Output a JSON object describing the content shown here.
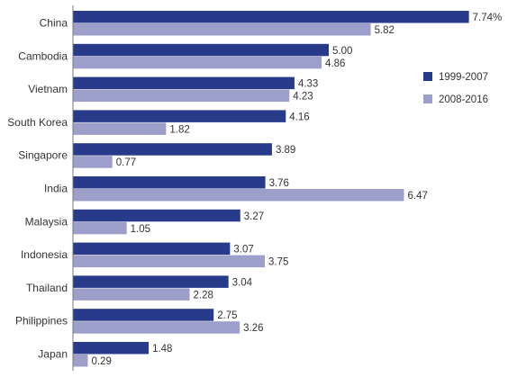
{
  "chart_data": {
    "type": "bar",
    "orientation": "horizontal",
    "title": "",
    "xlabel": "",
    "ylabel": "",
    "categories": [
      "China",
      "Cambodia",
      "Vietnam",
      "South Korea",
      "Singapore",
      "India",
      "Malaysia",
      "Indonesia",
      "Thailand",
      "Philippines",
      "Japan"
    ],
    "series": [
      {
        "name": "1999-2007",
        "color": "#283a8a",
        "values": [
          7.74,
          5.0,
          4.33,
          4.16,
          3.89,
          3.76,
          3.27,
          3.07,
          3.04,
          2.75,
          1.48
        ],
        "labels": [
          "7.74%",
          "5.00",
          "4.33",
          "4.16",
          "3.89",
          "3.76",
          "3.27",
          "3.07",
          "3.04",
          "2.75",
          "1.48"
        ]
      },
      {
        "name": "2008-2016",
        "color": "#9c9fc9",
        "values": [
          5.82,
          4.86,
          4.23,
          1.82,
          0.77,
          6.47,
          1.05,
          3.75,
          2.28,
          3.26,
          0.29
        ],
        "labels": [
          "5.82",
          "4.86",
          "4.23",
          "1.82",
          "0.77",
          "6.47",
          "1.05",
          "3.75",
          "2.28",
          "3.26",
          "0.29"
        ]
      }
    ],
    "xlim": [
      0,
      8
    ],
    "grid": false,
    "legend_position": "right"
  }
}
